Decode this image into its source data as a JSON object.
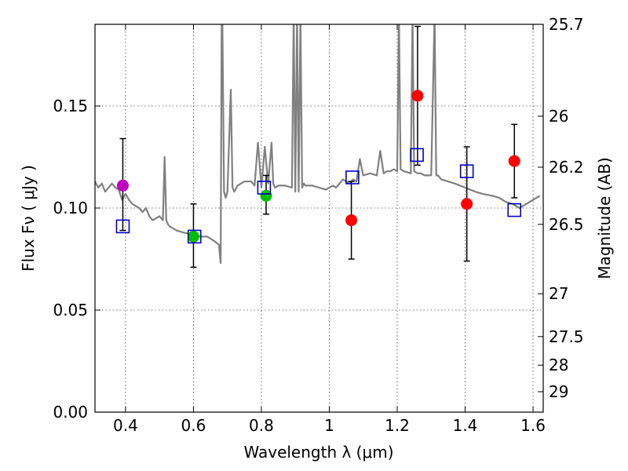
{
  "chart_data": {
    "type": "scatter",
    "xlabel": "Wavelength  λ (μm)",
    "ylabel": "Flux  Fν  ( μJy )",
    "y2label": "Magnitude (AB)",
    "xlim": [
      0.31,
      1.63
    ],
    "ylim": [
      0.0,
      0.19
    ],
    "x_ticks": [
      0.4,
      0.6,
      0.8,
      1.0,
      1.2,
      1.4,
      1.6
    ],
    "x_tick_labels": [
      "0.4",
      "0.6",
      "0.8",
      "1",
      "1.2",
      "1.4",
      "1.6"
    ],
    "y_ticks": [
      0.0,
      0.05,
      0.1,
      0.15
    ],
    "y_tick_labels": [
      "0.00",
      "0.05",
      "0.10",
      "0.15"
    ],
    "mag_ticks": [
      {
        "flux": 0.19,
        "label": "25.7"
      },
      {
        "flux": 0.145,
        "label": "26"
      },
      {
        "flux": 0.12,
        "label": "26.2"
      },
      {
        "flux": 0.092,
        "label": "26.5"
      },
      {
        "flux": 0.058,
        "label": "27"
      },
      {
        "flux": 0.037,
        "label": "27.5"
      },
      {
        "flux": 0.023,
        "label": "28"
      },
      {
        "flux": 0.01,
        "label": "29"
      }
    ],
    "grid": true,
    "series": [
      {
        "name": "measured-purple",
        "color": "#bf00bf",
        "marker": "circle",
        "points": [
          {
            "x": 0.392,
            "y": 0.111,
            "err_lo": 0.022,
            "err_hi": 0.023
          }
        ]
      },
      {
        "name": "measured-green",
        "color": "#00bf00",
        "marker": "circle",
        "points": [
          {
            "x": 0.6,
            "y": 0.086,
            "err_lo": 0.015,
            "err_hi": 0.016
          },
          {
            "x": 0.814,
            "y": 0.106,
            "err_lo": 0.009,
            "err_hi": 0.01
          }
        ]
      },
      {
        "name": "measured-red",
        "color": "#ff0000",
        "marker": "circle",
        "points": [
          {
            "x": 1.065,
            "y": 0.094,
            "err_lo": 0.019,
            "err_hi": 0.019
          },
          {
            "x": 1.26,
            "y": 0.155,
            "err_lo": 0.034,
            "err_hi": 0.034
          },
          {
            "x": 1.405,
            "y": 0.102,
            "err_lo": 0.028,
            "err_hi": 0.028
          },
          {
            "x": 1.545,
            "y": 0.123,
            "err_lo": 0.018,
            "err_hi": 0.018
          }
        ]
      },
      {
        "name": "model-photometry",
        "color": "#0000cc",
        "marker": "square",
        "points": [
          {
            "x": 0.392,
            "y": 0.091
          },
          {
            "x": 0.603,
            "y": 0.086
          },
          {
            "x": 0.808,
            "y": 0.11
          },
          {
            "x": 1.068,
            "y": 0.115
          },
          {
            "x": 1.258,
            "y": 0.126
          },
          {
            "x": 1.405,
            "y": 0.118
          },
          {
            "x": 1.545,
            "y": 0.099
          }
        ]
      }
    ],
    "spectrum": {
      "name": "model-sed",
      "color": "#808080",
      "x": [
        0.31,
        0.32,
        0.33,
        0.34,
        0.35,
        0.36,
        0.37,
        0.38,
        0.39,
        0.4,
        0.41,
        0.42,
        0.43,
        0.44,
        0.45,
        0.46,
        0.47,
        0.48,
        0.49,
        0.5,
        0.51,
        0.515,
        0.52,
        0.525,
        0.53,
        0.55,
        0.57,
        0.6,
        0.62,
        0.64,
        0.66,
        0.675,
        0.68,
        0.683,
        0.685,
        0.69,
        0.695,
        0.7,
        0.71,
        0.715,
        0.72,
        0.73,
        0.74,
        0.75,
        0.77,
        0.78,
        0.79,
        0.8,
        0.81,
        0.82,
        0.83,
        0.835,
        0.84,
        0.85,
        0.87,
        0.89,
        0.895,
        0.9,
        0.905,
        0.91,
        0.915,
        0.92,
        0.925,
        0.93,
        0.95,
        0.97,
        0.99,
        1.0,
        1.01,
        1.02,
        1.03,
        1.04,
        1.05,
        1.06,
        1.07,
        1.08,
        1.09,
        1.1,
        1.12,
        1.14,
        1.15,
        1.16,
        1.17,
        1.18,
        1.19,
        1.2,
        1.205,
        1.21,
        1.22,
        1.24,
        1.245,
        1.25,
        1.26,
        1.27,
        1.28,
        1.29,
        1.3,
        1.31,
        1.315,
        1.32,
        1.33,
        1.35,
        1.37,
        1.4,
        1.43,
        1.45,
        1.48,
        1.5,
        1.52,
        1.54,
        1.55,
        1.56,
        1.58,
        1.6,
        1.62
      ],
      "y": [
        0.113,
        0.11,
        0.112,
        0.108,
        0.11,
        0.112,
        0.11,
        0.109,
        0.104,
        0.107,
        0.104,
        0.102,
        0.101,
        0.1,
        0.098,
        0.1,
        0.096,
        0.094,
        0.095,
        0.096,
        0.094,
        0.125,
        0.094,
        0.092,
        0.091,
        0.089,
        0.088,
        0.087,
        0.086,
        0.086,
        0.084,
        0.082,
        0.073,
        0.195,
        0.195,
        0.108,
        0.105,
        0.108,
        0.158,
        0.11,
        0.108,
        0.111,
        0.112,
        0.113,
        0.113,
        0.111,
        0.132,
        0.11,
        0.13,
        0.112,
        0.132,
        0.112,
        0.11,
        0.111,
        0.111,
        0.11,
        0.195,
        0.108,
        0.195,
        0.108,
        0.195,
        0.11,
        0.112,
        0.111,
        0.111,
        0.11,
        0.109,
        0.11,
        0.111,
        0.11,
        0.112,
        0.114,
        0.113,
        0.112,
        0.114,
        0.113,
        0.124,
        0.116,
        0.117,
        0.116,
        0.128,
        0.117,
        0.118,
        0.118,
        0.119,
        0.118,
        0.195,
        0.119,
        0.118,
        0.117,
        0.195,
        0.118,
        0.117,
        0.117,
        0.116,
        0.116,
        0.116,
        0.195,
        0.116,
        0.116,
        0.114,
        0.113,
        0.112,
        0.11,
        0.108,
        0.107,
        0.106,
        0.105,
        0.103,
        0.102,
        0.101,
        0.1,
        0.102,
        0.104,
        0.106
      ]
    }
  }
}
